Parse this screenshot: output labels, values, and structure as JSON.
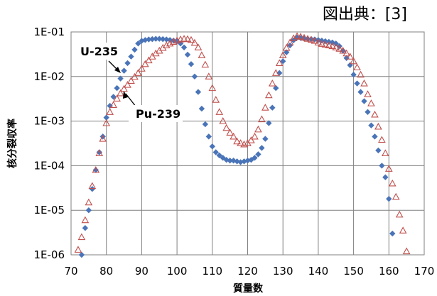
{
  "source_note": "図出典：[3]",
  "chart_data": {
    "type": "scatter",
    "title": "",
    "xlabel": "質量数",
    "ylabel": "核分裂収率",
    "xlim": [
      70,
      170
    ],
    "ylim": [
      1e-06,
      0.1
    ],
    "yscale": "log",
    "grid": true,
    "x_ticks": [
      70,
      80,
      90,
      100,
      110,
      120,
      130,
      140,
      150,
      160,
      170
    ],
    "x_tick_labels": [
      "70",
      "80",
      "90",
      "100",
      "110",
      "120",
      "130",
      "140",
      "150",
      "160",
      "170"
    ],
    "y_ticks": [
      1e-06,
      1e-05,
      0.0001,
      0.001,
      0.01,
      0.1
    ],
    "y_tick_labels": [
      "1E-06",
      "1E-05",
      "1E-04",
      "1E-03",
      "1E-02",
      "1E-01"
    ],
    "series": [
      {
        "name": "U-235",
        "marker": "diamond",
        "color": "#4a74b8",
        "points": [
          [
            73,
            1e-06
          ],
          [
            74,
            4e-06
          ],
          [
            75,
            1e-05
          ],
          [
            76,
            3e-05
          ],
          [
            77,
            8e-05
          ],
          [
            78,
            0.0002
          ],
          [
            79,
            0.00045
          ],
          [
            80,
            0.0012
          ],
          [
            81,
            0.0022
          ],
          [
            82,
            0.0035
          ],
          [
            83,
            0.0055
          ],
          [
            84,
            0.009
          ],
          [
            85,
            0.0135
          ],
          [
            86,
            0.02
          ],
          [
            87,
            0.028
          ],
          [
            88,
            0.04
          ],
          [
            89,
            0.055
          ],
          [
            90,
            0.063
          ],
          [
            91,
            0.066
          ],
          [
            92,
            0.068
          ],
          [
            93,
            0.069
          ],
          [
            94,
            0.07
          ],
          [
            95,
            0.07
          ],
          [
            96,
            0.069
          ],
          [
            97,
            0.068
          ],
          [
            98,
            0.066
          ],
          [
            99,
            0.064
          ],
          [
            100,
            0.062
          ],
          [
            101,
            0.055
          ],
          [
            102,
            0.045
          ],
          [
            103,
            0.031
          ],
          [
            104,
            0.019
          ],
          [
            105,
            0.01
          ],
          [
            106,
            0.0045
          ],
          [
            107,
            0.0019
          ],
          [
            108,
            0.00085
          ],
          [
            109,
            0.00045
          ],
          [
            110,
            0.00027
          ],
          [
            111,
            0.0002
          ],
          [
            112,
            0.00017
          ],
          [
            113,
            0.00015
          ],
          [
            114,
            0.000135
          ],
          [
            115,
            0.00013
          ],
          [
            116,
            0.00013
          ],
          [
            117,
            0.000125
          ],
          [
            118,
            0.00012
          ],
          [
            119,
            0.000125
          ],
          [
            120,
            0.00013
          ],
          [
            121,
            0.000135
          ],
          [
            122,
            0.00015
          ],
          [
            123,
            0.00018
          ],
          [
            124,
            0.00025
          ],
          [
            125,
            0.0004
          ],
          [
            126,
            0.0009
          ],
          [
            127,
            0.002
          ],
          [
            128,
            0.0055
          ],
          [
            129,
            0.012
          ],
          [
            130,
            0.022
          ],
          [
            131,
            0.035
          ],
          [
            132,
            0.05
          ],
          [
            133,
            0.065
          ],
          [
            134,
            0.075
          ],
          [
            135,
            0.073
          ],
          [
            136,
            0.071
          ],
          [
            137,
            0.07
          ],
          [
            138,
            0.069
          ],
          [
            139,
            0.068
          ],
          [
            140,
            0.066
          ],
          [
            141,
            0.064
          ],
          [
            142,
            0.062
          ],
          [
            143,
            0.06
          ],
          [
            144,
            0.058
          ],
          [
            145,
            0.055
          ],
          [
            146,
            0.048
          ],
          [
            147,
            0.038
          ],
          [
            148,
            0.026
          ],
          [
            149,
            0.018
          ],
          [
            150,
            0.011
          ],
          [
            151,
            0.007
          ],
          [
            152,
            0.0045
          ],
          [
            153,
            0.0028
          ],
          [
            154,
            0.0016
          ],
          [
            155,
            0.0008
          ],
          [
            156,
            0.00045
          ],
          [
            157,
            0.00022
          ],
          [
            158,
            0.0001
          ],
          [
            159,
            5.5e-05
          ],
          [
            160,
            1.8e-05
          ],
          [
            161,
            3e-06
          ]
        ]
      },
      {
        "name": "Pu-239",
        "marker": "triangle-open",
        "color": "#c0504d",
        "points": [
          [
            72,
            1.3e-06
          ],
          [
            73,
            2.5e-06
          ],
          [
            74,
            6e-06
          ],
          [
            75,
            1.5e-05
          ],
          [
            76,
            3.5e-05
          ],
          [
            77,
            8e-05
          ],
          [
            78,
            0.00019
          ],
          [
            79,
            0.0004
          ],
          [
            80,
            0.0009
          ],
          [
            81,
            0.0016
          ],
          [
            82,
            0.0023
          ],
          [
            83,
            0.0032
          ],
          [
            84,
            0.0042
          ],
          [
            85,
            0.0053
          ],
          [
            86,
            0.0065
          ],
          [
            87,
            0.008
          ],
          [
            88,
            0.0098
          ],
          [
            89,
            0.012
          ],
          [
            90,
            0.015
          ],
          [
            91,
            0.019
          ],
          [
            92,
            0.023
          ],
          [
            93,
            0.028
          ],
          [
            94,
            0.033
          ],
          [
            95,
            0.038
          ],
          [
            96,
            0.044
          ],
          [
            97,
            0.05
          ],
          [
            98,
            0.055
          ],
          [
            99,
            0.06
          ],
          [
            100,
            0.064
          ],
          [
            101,
            0.068
          ],
          [
            102,
            0.07
          ],
          [
            103,
            0.069
          ],
          [
            104,
            0.066
          ],
          [
            105,
            0.057
          ],
          [
            106,
            0.045
          ],
          [
            107,
            0.03
          ],
          [
            108,
            0.0185
          ],
          [
            109,
            0.01
          ],
          [
            110,
            0.0055
          ],
          [
            111,
            0.003
          ],
          [
            112,
            0.0016
          ],
          [
            113,
            0.001
          ],
          [
            114,
            0.0007
          ],
          [
            115,
            0.00055
          ],
          [
            116,
            0.00045
          ],
          [
            117,
            0.00035
          ],
          [
            118,
            0.00032
          ],
          [
            119,
            0.0003
          ],
          [
            120,
            0.00032
          ],
          [
            121,
            0.00037
          ],
          [
            122,
            0.00045
          ],
          [
            123,
            0.00065
          ],
          [
            124,
            0.0011
          ],
          [
            125,
            0.002
          ],
          [
            126,
            0.0038
          ],
          [
            127,
            0.007
          ],
          [
            128,
            0.012
          ],
          [
            129,
            0.02
          ],
          [
            130,
            0.03
          ],
          [
            131,
            0.044
          ],
          [
            132,
            0.058
          ],
          [
            133,
            0.072
          ],
          [
            134,
            0.08
          ],
          [
            135,
            0.078
          ],
          [
            136,
            0.074
          ],
          [
            137,
            0.07
          ],
          [
            138,
            0.067
          ],
          [
            139,
            0.063
          ],
          [
            140,
            0.058
          ],
          [
            141,
            0.054
          ],
          [
            142,
            0.052
          ],
          [
            143,
            0.05
          ],
          [
            144,
            0.048
          ],
          [
            145,
            0.045
          ],
          [
            146,
            0.042
          ],
          [
            147,
            0.038
          ],
          [
            148,
            0.033
          ],
          [
            149,
            0.028
          ],
          [
            150,
            0.022
          ],
          [
            151,
            0.016
          ],
          [
            152,
            0.011
          ],
          [
            153,
            0.007
          ],
          [
            154,
            0.004
          ],
          [
            155,
            0.0025
          ],
          [
            156,
            0.0014
          ],
          [
            157,
            0.00075
          ],
          [
            158,
            0.00038
          ],
          [
            159,
            0.00019
          ],
          [
            160,
            8.5e-05
          ],
          [
            161,
            4e-05
          ],
          [
            162,
            2e-05
          ],
          [
            163,
            8e-06
          ],
          [
            164,
            3.5e-06
          ],
          [
            165,
            1.2e-06
          ]
        ]
      }
    ],
    "annotations": [
      {
        "text": "U-235",
        "series": "U-235"
      },
      {
        "text": "Pu-239",
        "series": "Pu-239"
      }
    ]
  }
}
